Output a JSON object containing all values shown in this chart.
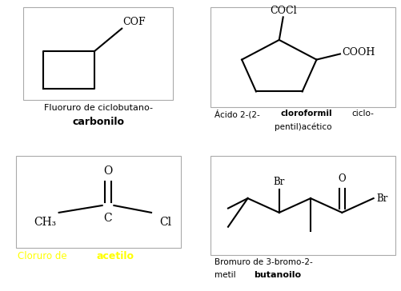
{
  "bg_colors": {
    "top_left": "#f5f5a0",
    "top_right": "#c8f5f5",
    "bottom_left": "#ffff00",
    "bottom_right": "#f9c0f9"
  },
  "fig_bg": "#ffffff",
  "molecule_box_color": "#ffffff",
  "molecule_box_edge": "#aaaaaa",
  "line_color": "#000000",
  "labels": {
    "tl_1": "Fluoruro de ciclobutano-",
    "tl_2": "carbonilo",
    "tr_1": "Ácido 2-(2-",
    "tr_bold": "cloroformil",
    "tr_3": "ciclo-",
    "tr_4": "pentil)acético",
    "bl_1": "Cloruro de ",
    "bl_bold": "acetilo",
    "br_1": "Bromuro de 3-bromo-2-",
    "br_2": "metil",
    "br_bold": "butanoilo"
  }
}
